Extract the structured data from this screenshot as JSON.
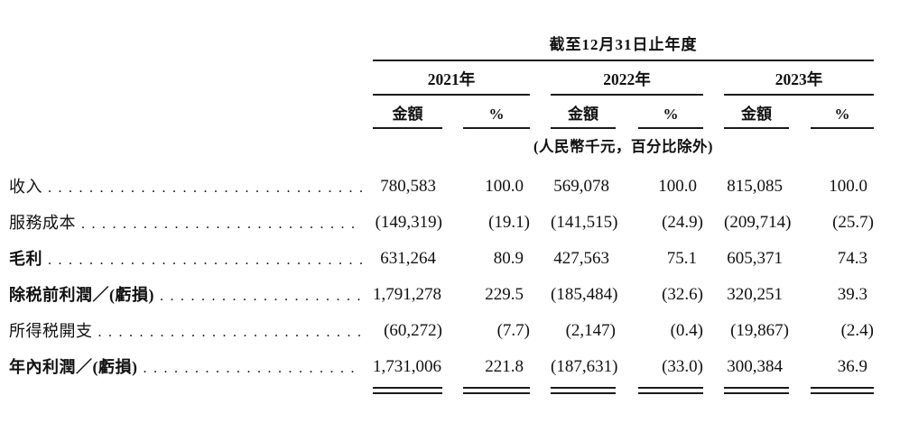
{
  "table": {
    "header": {
      "period_title": "截至12月31日止年度",
      "years": [
        {
          "label": "2021年"
        },
        {
          "label": "2022年"
        },
        {
          "label": "2023年"
        }
      ],
      "amount_label": "金額",
      "percent_label": "%",
      "note": "(人民幣千元，百分比除外)"
    },
    "columns_per_year": [
      "金額",
      "%"
    ],
    "rows": [
      {
        "label": "收入",
        "bold": false,
        "values": [
          "780,583",
          "100.0",
          "569,078",
          "100.0",
          "815,085",
          "100.0"
        ]
      },
      {
        "label": "服務成本",
        "bold": false,
        "values": [
          "(149,319)",
          "(19.1)",
          "(141,515)",
          "(24.9)",
          "(209,714)",
          "(25.7)"
        ]
      },
      {
        "label": "毛利",
        "bold": true,
        "values": [
          "631,264",
          "80.9",
          "427,563",
          "75.1",
          "605,371",
          "74.3"
        ]
      },
      {
        "label": "除税前利潤／(虧損)",
        "bold": true,
        "values": [
          "1,791,278",
          "229.5",
          "(185,484)",
          "(32.6)",
          "320,251",
          "39.3"
        ]
      },
      {
        "label": "所得税開支",
        "bold": false,
        "values": [
          "(60,272)",
          "(7.7)",
          "(2,147)",
          "(0.4)",
          "(19,867)",
          "(2.4)"
        ]
      },
      {
        "label": "年內利潤／(虧損)",
        "bold": true,
        "values": [
          "1,731,006",
          "221.8",
          "(187,631)",
          "(33.0)",
          "300,384",
          "36.9"
        ]
      }
    ]
  },
  "colors": {
    "text": "#111111",
    "rule": "#1a1a1a",
    "background": "#ffffff"
  }
}
